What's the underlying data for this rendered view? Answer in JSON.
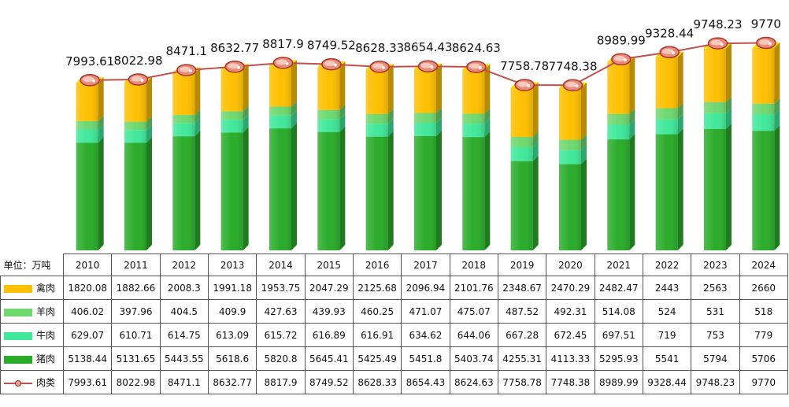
{
  "chart_data": {
    "type": "bar",
    "stacked": true,
    "unit_label": "单位：万吨",
    "categories": [
      "2010",
      "2011",
      "2012",
      "2013",
      "2014",
      "2015",
      "2016",
      "2017",
      "2018",
      "2019",
      "2020",
      "2021",
      "2022",
      "2023",
      "2024"
    ],
    "series": [
      {
        "name": "禽肉",
        "color": "#ffc000",
        "values": [
          "1820.08",
          "1882.66",
          "2008.3",
          "1991.18",
          "1953.75",
          "2047.29",
          "2125.68",
          "2096.94",
          "2101.76",
          "2348.67",
          "2470.29",
          "2482.47",
          "2443",
          "2563",
          "2660"
        ]
      },
      {
        "name": "羊肉",
        "color": "#6fd86f",
        "values": [
          "406.02",
          "397.96",
          "404.5",
          "409.9",
          "427.63",
          "439.93",
          "460.25",
          "471.07",
          "475.07",
          "487.52",
          "492.31",
          "514.08",
          "524",
          "531",
          "518"
        ]
      },
      {
        "name": "牛肉",
        "color": "#40e89a",
        "values": [
          "629.07",
          "610.71",
          "614.75",
          "613.09",
          "615.72",
          "616.89",
          "616.91",
          "634.62",
          "644.06",
          "667.28",
          "672.45",
          "697.51",
          "719",
          "753",
          "779"
        ]
      },
      {
        "name": "猪肉",
        "color": "#2aac2a",
        "values": [
          "5138.44",
          "5131.65",
          "5443.55",
          "5618.6",
          "5820.8",
          "5645.41",
          "5425.49",
          "5451.8",
          "5403.74",
          "4255.31",
          "4113.33",
          "5295.93",
          "5541",
          "5794",
          "5706"
        ]
      }
    ],
    "line": {
      "name": "肉类",
      "color": "#c0504d",
      "values": [
        "7993.61",
        "8022.98",
        "8471.1",
        "8632.77",
        "8817.9",
        "8749.52",
        "8628.33",
        "8654.43",
        "8624.63",
        "7758.78",
        "7748.38",
        "8989.99",
        "9328.44",
        "9748.23",
        "9770"
      ]
    },
    "grid": false,
    "legend": "table"
  }
}
